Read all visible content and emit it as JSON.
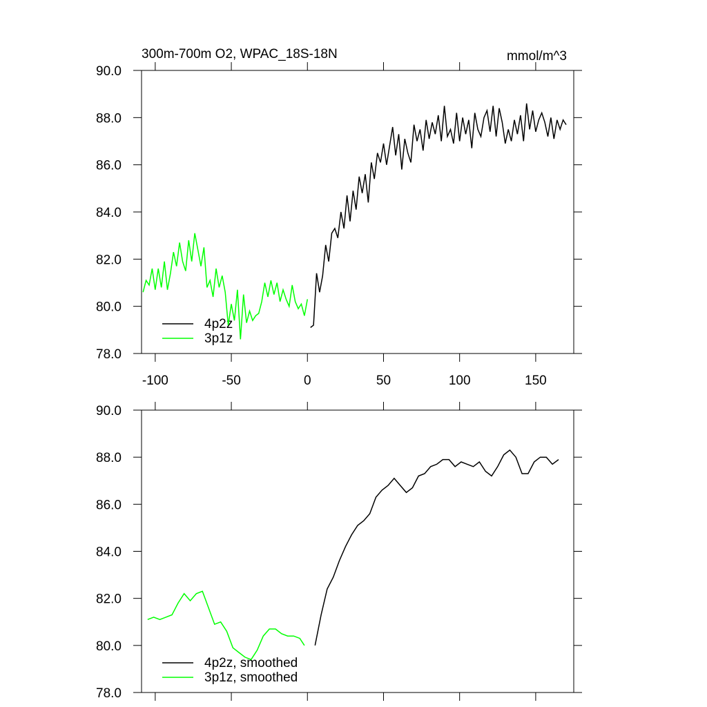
{
  "chart_data": [
    {
      "type": "line",
      "title": "300m-700m O2, WPAC_18S-18N",
      "subtitle": "mmol/m^3",
      "xlim": [
        -109,
        175
      ],
      "xticks": [
        -100,
        -50,
        0,
        50,
        100,
        150
      ],
      "ylim": [
        78,
        90
      ],
      "yticks": [
        {
          "value": 78,
          "label": "78.0"
        },
        {
          "value": 80,
          "label": "80.0"
        },
        {
          "value": 82,
          "label": "82.0"
        },
        {
          "value": 84,
          "label": "84.0"
        },
        {
          "value": 86,
          "label": "86.0"
        },
        {
          "value": 88,
          "label": "88.0"
        },
        {
          "value": 90,
          "label": "90.0"
        }
      ],
      "legend": "lower left",
      "series": [
        {
          "name": "4p2z",
          "color": "#000000",
          "x": [
            2,
            4,
            6,
            8,
            10,
            12,
            14,
            16,
            18,
            20,
            22,
            24,
            26,
            28,
            30,
            32,
            34,
            36,
            38,
            40,
            42,
            44,
            46,
            48,
            50,
            52,
            54,
            56,
            58,
            60,
            62,
            64,
            66,
            68,
            70,
            72,
            74,
            76,
            78,
            80,
            82,
            84,
            86,
            88,
            90,
            92,
            94,
            96,
            98,
            100,
            102,
            104,
            106,
            108,
            110,
            112,
            114,
            116,
            118,
            120,
            122,
            124,
            126,
            128,
            130,
            132,
            134,
            136,
            138,
            140,
            142,
            144,
            146,
            148,
            150,
            152,
            154,
            156,
            158,
            160,
            162,
            164,
            166,
            168,
            170
          ],
          "values": [
            79.1,
            79.2,
            81.4,
            80.6,
            81.3,
            82.6,
            81.9,
            83.1,
            83.3,
            82.9,
            84.0,
            83.3,
            84.7,
            83.6,
            84.9,
            84.1,
            85.5,
            84.8,
            85.6,
            84.4,
            86.1,
            85.4,
            86.5,
            86.1,
            86.9,
            86.0,
            86.8,
            87.6,
            86.4,
            87.3,
            85.8,
            87.1,
            86.5,
            86.1,
            87.7,
            87.0,
            87.5,
            86.6,
            87.9,
            87.1,
            87.8,
            87.3,
            88.1,
            87.0,
            88.5,
            87.2,
            87.5,
            86.9,
            88.2,
            87.0,
            88.0,
            87.3,
            87.9,
            86.7,
            88.2,
            87.5,
            87.2,
            88.0,
            88.3,
            87.4,
            88.5,
            87.2,
            88.4,
            87.8,
            86.9,
            87.5,
            87.0,
            87.9,
            87.3,
            88.1,
            87.0,
            88.6,
            87.5,
            88.3,
            87.4,
            87.9,
            88.2,
            87.8,
            87.2,
            88.0,
            87.1,
            87.9,
            87.5,
            87.9,
            87.7
          ]
        },
        {
          "name": "3p1z",
          "color": "#00ff00",
          "x": [
            -108,
            -106,
            -104,
            -102,
            -100,
            -98,
            -96,
            -94,
            -92,
            -90,
            -88,
            -86,
            -84,
            -82,
            -80,
            -78,
            -76,
            -74,
            -72,
            -70,
            -68,
            -66,
            -64,
            -62,
            -60,
            -58,
            -56,
            -54,
            -52,
            -50,
            -48,
            -46,
            -44,
            -42,
            -40,
            -38,
            -36,
            -34,
            -32,
            -30,
            -28,
            -26,
            -24,
            -22,
            -20,
            -18,
            -16,
            -14,
            -12,
            -10,
            -8,
            -6,
            -4,
            -2,
            0
          ],
          "values": [
            80.6,
            81.1,
            80.9,
            81.6,
            80.7,
            81.6,
            80.8,
            81.9,
            80.7,
            81.4,
            82.3,
            81.7,
            82.7,
            81.9,
            81.5,
            82.8,
            81.9,
            83.1,
            82.4,
            81.7,
            82.5,
            80.8,
            81.1,
            80.4,
            81.6,
            80.8,
            81.3,
            80.6,
            79.2,
            80.1,
            79.4,
            80.7,
            78.6,
            80.5,
            79.3,
            79.8,
            79.4,
            79.6,
            79.7,
            80.2,
            81.0,
            80.4,
            81.1,
            80.5,
            81.0,
            80.2,
            80.7,
            80.3,
            80.0,
            80.9,
            80.2,
            79.9,
            80.1,
            79.6,
            80.3
          ]
        }
      ]
    },
    {
      "type": "line",
      "xlim": [
        -109,
        175
      ],
      "xticks": [
        -100,
        -50,
        0,
        50,
        100,
        150
      ],
      "xtick_labels": false,
      "ylim": [
        78,
        90
      ],
      "yticks": [
        {
          "value": 78,
          "label": "78.0"
        },
        {
          "value": 80,
          "label": "80.0"
        },
        {
          "value": 82,
          "label": "82.0"
        },
        {
          "value": 84,
          "label": "84.0"
        },
        {
          "value": 86,
          "label": "86.0"
        },
        {
          "value": 88,
          "label": "88.0"
        },
        {
          "value": 90,
          "label": "90.0"
        }
      ],
      "legend": "lower left",
      "series": [
        {
          "name": "4p2z, smoothed",
          "color": "#000000",
          "x": [
            5,
            9,
            13,
            17,
            21,
            25,
            29,
            33,
            37,
            41,
            45,
            49,
            53,
            57,
            61,
            65,
            69,
            73,
            77,
            81,
            85,
            89,
            93,
            97,
            101,
            105,
            109,
            113,
            117,
            121,
            125,
            129,
            133,
            137,
            141,
            145,
            149,
            153,
            157,
            161,
            165
          ],
          "values": [
            80.0,
            81.3,
            82.4,
            82.9,
            83.6,
            84.2,
            84.7,
            85.1,
            85.3,
            85.6,
            86.3,
            86.6,
            86.8,
            87.1,
            86.8,
            86.5,
            86.7,
            87.2,
            87.3,
            87.6,
            87.7,
            87.9,
            87.9,
            87.6,
            87.8,
            87.7,
            87.6,
            87.8,
            87.4,
            87.2,
            87.6,
            88.1,
            88.3,
            88.0,
            87.3,
            87.3,
            87.8,
            88.0,
            88.0,
            87.7,
            87.9
          ]
        },
        {
          "name": "3p1z, smoothed",
          "color": "#00ff00",
          "x": [
            -105,
            -101,
            -97,
            -93,
            -89,
            -85,
            -81,
            -77,
            -73,
            -69,
            -65,
            -61,
            -57,
            -53,
            -49,
            -45,
            -41,
            -37,
            -33,
            -29,
            -25,
            -21,
            -17,
            -13,
            -9,
            -5,
            -2
          ],
          "values": [
            81.1,
            81.2,
            81.1,
            81.2,
            81.3,
            81.8,
            82.2,
            81.9,
            82.2,
            82.3,
            81.6,
            80.9,
            81.0,
            80.6,
            79.9,
            79.7,
            79.5,
            79.4,
            79.8,
            80.4,
            80.7,
            80.7,
            80.5,
            80.4,
            80.4,
            80.3,
            80.0
          ]
        }
      ]
    }
  ]
}
